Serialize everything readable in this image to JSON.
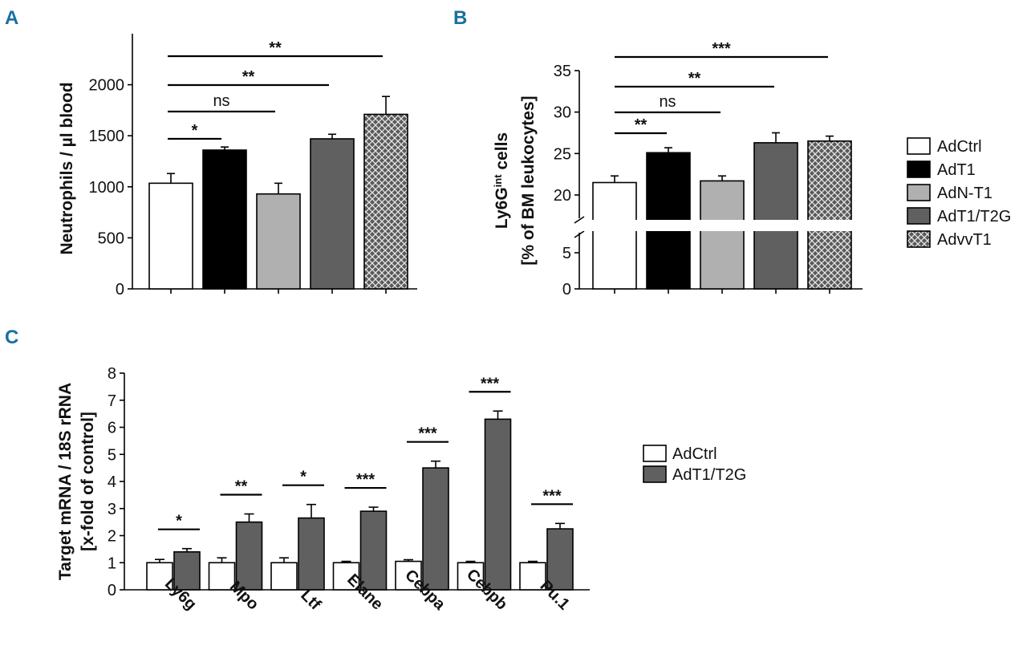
{
  "colors": {
    "AdCtrl": "#ffffff",
    "AdT1": "#000000",
    "AdN-T1": "#b0b0b0",
    "AdT1/T2G": "#606060",
    "AdvvT1": "hatch",
    "panel_letter": "#1a6fa0"
  },
  "legend_top": [
    "AdCtrl",
    "AdT1",
    "AdN-T1",
    "AdT1/T2G",
    "AdvvT1"
  ],
  "legend_bottom": [
    "AdCtrl",
    "AdT1/T2G"
  ],
  "chart_data": [
    {
      "panel": "A",
      "type": "bar",
      "ylabel": "Neutrophils / µl blood",
      "ylim": [
        0,
        2500
      ],
      "yticks": [
        0,
        500,
        1000,
        1500,
        2000
      ],
      "ytick_labels": [
        "0",
        "500",
        "1000",
        "1500",
        "2000"
      ],
      "categories": [
        "AdCtrl",
        "AdT1",
        "AdN-T1",
        "AdT1/T2G",
        "AdvvT1"
      ],
      "values": [
        1035,
        1360,
        930,
        1470,
        1710
      ],
      "errors": [
        95,
        30,
        105,
        45,
        175
      ],
      "significance": [
        {
          "from": 0,
          "to": 1,
          "label": "*"
        },
        {
          "from": 0,
          "to": 2,
          "label": "ns"
        },
        {
          "from": 0,
          "to": 3,
          "label": "**"
        },
        {
          "from": 0,
          "to": 4,
          "label": "**"
        }
      ]
    },
    {
      "panel": "B",
      "type": "bar",
      "ylabel_main": "Ly6G",
      "ylabel_sup": "int",
      "ylabel_tail": " cells",
      "ylabel_line2": "[% of BM leukocytes]",
      "axis_break": true,
      "lower_range": [
        0,
        5
      ],
      "upper_range": [
        20,
        35
      ],
      "yticks": [
        0,
        5,
        20,
        25,
        30,
        35
      ],
      "ytick_labels": [
        "0",
        "5",
        "20",
        "25",
        "30",
        "35"
      ],
      "categories": [
        "AdCtrl",
        "AdT1",
        "AdN-T1",
        "AdT1/T2G",
        "AdvvT1"
      ],
      "values": [
        21.5,
        25.1,
        21.7,
        26.3,
        26.5
      ],
      "errors": [
        0.8,
        0.6,
        0.6,
        1.2,
        0.6
      ],
      "significance": [
        {
          "from": 0,
          "to": 1,
          "label": "**"
        },
        {
          "from": 0,
          "to": 2,
          "label": "ns"
        },
        {
          "from": 0,
          "to": 3,
          "label": "**"
        },
        {
          "from": 0,
          "to": 4,
          "label": "***"
        }
      ]
    },
    {
      "panel": "C",
      "type": "bar",
      "ylabel": "Target mRNA / 18S rRNA",
      "ylabel_line2": "[x-fold of control]",
      "ylim": [
        0,
        8
      ],
      "yticks": [
        0,
        1,
        2,
        3,
        4,
        5,
        6,
        7,
        8
      ],
      "ytick_labels": [
        "0",
        "1",
        "2",
        "3",
        "4",
        "5",
        "6",
        "7",
        "8"
      ],
      "categories": [
        "Ly6g",
        "Mpo",
        "Ltf",
        "Elane",
        "Cebpa",
        "Cebpb",
        "Pu.1"
      ],
      "series": [
        {
          "name": "AdCtrl",
          "values": [
            1.0,
            1.0,
            1.0,
            1.0,
            1.05,
            1.0,
            1.0
          ],
          "errors": [
            0.12,
            0.18,
            0.18,
            0.05,
            0.06,
            0.05,
            0.05
          ]
        },
        {
          "name": "AdT1/T2G",
          "values": [
            1.4,
            2.5,
            2.65,
            2.9,
            4.5,
            6.3,
            2.25
          ],
          "errors": [
            0.12,
            0.3,
            0.5,
            0.15,
            0.25,
            0.3,
            0.2
          ]
        }
      ],
      "significance": [
        "*",
        "**",
        "*",
        "***",
        "***",
        "***",
        "***"
      ]
    }
  ]
}
